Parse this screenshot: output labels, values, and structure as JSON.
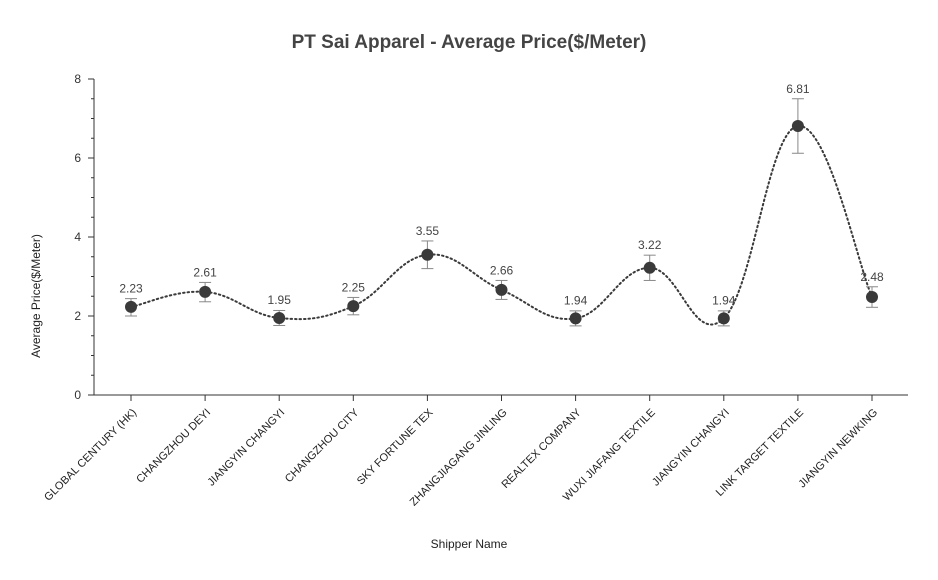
{
  "chart_data": {
    "type": "line",
    "title": "PT Sai Apparel - Average Price($/Meter)",
    "xlabel": "Shipper Name",
    "ylabel": "Average Price($/Meter)",
    "ylim": [
      0,
      8
    ],
    "yticks": [
      "0",
      "2",
      "4",
      "6",
      "8"
    ],
    "grid": false,
    "line_style": "dotted smooth",
    "marker_color": "#3a3a3a",
    "line_color": "#3a3a3a",
    "errorbar_color": "#888888",
    "categories": [
      "GLOBAL CENTURY (HK)",
      "CHANGZHOU DEYI",
      "JIANGYIN CHANGYI",
      "CHANGZHOU CITY",
      "SKY FORTUNE TEX",
      "ZHANGJIAGANG JINLING",
      "REALTEX COMPANY",
      "WUXI JIAFANG TEXTILE",
      "JIANGYIN CHANGYI",
      "LINK TARGET TEXTILE",
      "JIANGYIN NEWKING"
    ],
    "values": [
      2.23,
      2.61,
      1.95,
      2.25,
      3.55,
      2.66,
      1.94,
      3.22,
      1.94,
      6.81,
      2.48
    ],
    "value_labels": [
      "2.23",
      "2.61",
      "1.95",
      "2.25",
      "3.55",
      "2.66",
      "1.94",
      "3.22",
      "1.94",
      "6.81",
      "2.48"
    ],
    "error_low": [
      2.0,
      2.36,
      1.76,
      2.03,
      3.2,
      2.42,
      1.75,
      2.9,
      1.75,
      6.12,
      2.22
    ],
    "error_high": [
      2.44,
      2.85,
      2.14,
      2.47,
      3.9,
      2.9,
      2.13,
      3.54,
      2.13,
      7.5,
      2.74
    ]
  }
}
